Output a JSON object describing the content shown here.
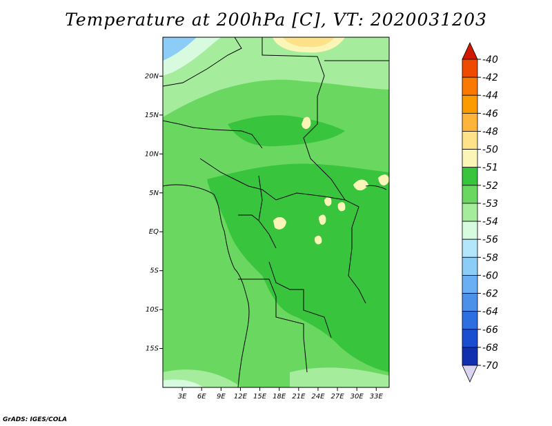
{
  "title": "Temperature at 200hPa [C], VT: 2020031203",
  "credit": "GrADS: IGES/COLA",
  "map": {
    "lon_range": [
      0,
      35
    ],
    "lat_range": [
      -20,
      25
    ],
    "x_ticks": [
      {
        "lon": 3,
        "label": "3E"
      },
      {
        "lon": 6,
        "label": "6E"
      },
      {
        "lon": 9,
        "label": "9E"
      },
      {
        "lon": 12,
        "label": "12E"
      },
      {
        "lon": 15,
        "label": "15E"
      },
      {
        "lon": 18,
        "label": "18E"
      },
      {
        "lon": 21,
        "label": "21E"
      },
      {
        "lon": 24,
        "label": "24E"
      },
      {
        "lon": 27,
        "label": "27E"
      },
      {
        "lon": 30,
        "label": "30E"
      },
      {
        "lon": 33,
        "label": "33E"
      }
    ],
    "y_ticks": [
      {
        "lat": 20,
        "label": "20N"
      },
      {
        "lat": 15,
        "label": "15N"
      },
      {
        "lat": 10,
        "label": "10N"
      },
      {
        "lat": 5,
        "label": "5N"
      },
      {
        "lat": 0,
        "label": "EQ"
      },
      {
        "lat": -5,
        "label": "5S"
      },
      {
        "lat": -10,
        "label": "10S"
      },
      {
        "lat": -15,
        "label": "15S"
      }
    ]
  },
  "colorbar": {
    "levels": [
      "-40",
      "-42",
      "-44",
      "-46",
      "-48",
      "-50",
      "-51",
      "-52",
      "-53",
      "-54",
      "-56",
      "-58",
      "-60",
      "-62",
      "-64",
      "-66",
      "-68",
      "-70"
    ],
    "colors": [
      "#d72400",
      "#ee4b00",
      "#f97800",
      "#fb9b00",
      "#fcb53a",
      "#fde28a",
      "#fbf6b8",
      "#38c43c",
      "#6ad860",
      "#a5ec9c",
      "#d8fbe0",
      "#b3e6fb",
      "#8ccdf8",
      "#6aaff3",
      "#4b91ea",
      "#2d6fe0",
      "#1a4ed0",
      "#1030b0",
      "#0a1470"
    ],
    "top_arrow_color": "#cf1a00",
    "bottom_arrow_color": "#d8d4f2"
  }
}
